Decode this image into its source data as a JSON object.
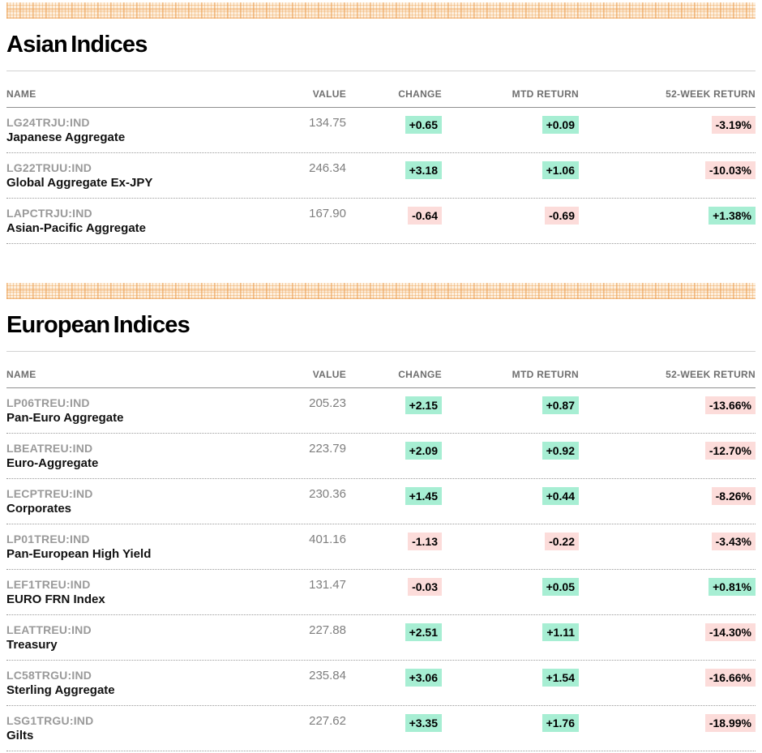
{
  "theme": {
    "positive_bg": "#a7eed3",
    "negative_bg": "#fcdcda",
    "banner_base": "#fdf0e0",
    "banner_line": "#eea458"
  },
  "sections": [
    {
      "title": "Asian Indices",
      "columns": [
        "NAME",
        "VALUE",
        "CHANGE",
        "MTD RETURN",
        "52-WEEK RETURN"
      ],
      "rows": [
        {
          "ticker": "LG24TRJU:IND",
          "name": "Japanese Aggregate",
          "value": "134.75",
          "change": "+0.65",
          "change_dir": "pos",
          "mtd_return": "+0.09",
          "mtd_dir": "pos",
          "week52_return": "-3.19%",
          "week52_dir": "neg"
        },
        {
          "ticker": "LG22TRUU:IND",
          "name": "Global Aggregate Ex-JPY",
          "value": "246.34",
          "change": "+3.18",
          "change_dir": "pos",
          "mtd_return": "+1.06",
          "mtd_dir": "pos",
          "week52_return": "-10.03%",
          "week52_dir": "neg"
        },
        {
          "ticker": "LAPCTRJU:IND",
          "name": "Asian-Pacific Aggregate",
          "value": "167.90",
          "change": "-0.64",
          "change_dir": "neg",
          "mtd_return": "-0.69",
          "mtd_dir": "neg",
          "week52_return": "+1.38%",
          "week52_dir": "pos"
        }
      ]
    },
    {
      "title": "European Indices",
      "columns": [
        "NAME",
        "VALUE",
        "CHANGE",
        "MTD RETURN",
        "52-WEEK RETURN"
      ],
      "rows": [
        {
          "ticker": "LP06TREU:IND",
          "name": "Pan-Euro Aggregate",
          "value": "205.23",
          "change": "+2.15",
          "change_dir": "pos",
          "mtd_return": "+0.87",
          "mtd_dir": "pos",
          "week52_return": "-13.66%",
          "week52_dir": "neg"
        },
        {
          "ticker": "LBEATREU:IND",
          "name": "Euro-Aggregate",
          "value": "223.79",
          "change": "+2.09",
          "change_dir": "pos",
          "mtd_return": "+0.92",
          "mtd_dir": "pos",
          "week52_return": "-12.70%",
          "week52_dir": "neg"
        },
        {
          "ticker": "LECPTREU:IND",
          "name": "Corporates",
          "value": "230.36",
          "change": "+1.45",
          "change_dir": "pos",
          "mtd_return": "+0.44",
          "mtd_dir": "pos",
          "week52_return": "-8.26%",
          "week52_dir": "neg"
        },
        {
          "ticker": "LP01TREU:IND",
          "name": "Pan-European High Yield",
          "value": "401.16",
          "change": "-1.13",
          "change_dir": "neg",
          "mtd_return": "-0.22",
          "mtd_dir": "neg",
          "week52_return": "-3.43%",
          "week52_dir": "neg"
        },
        {
          "ticker": "LEF1TREU:IND",
          "name": "EURO FRN Index",
          "value": "131.47",
          "change": "-0.03",
          "change_dir": "neg",
          "mtd_return": "+0.05",
          "mtd_dir": "pos",
          "week52_return": "+0.81%",
          "week52_dir": "pos"
        },
        {
          "ticker": "LEATTREU:IND",
          "name": "Treasury",
          "value": "227.88",
          "change": "+2.51",
          "change_dir": "pos",
          "mtd_return": "+1.11",
          "mtd_dir": "pos",
          "week52_return": "-14.30%",
          "week52_dir": "neg"
        },
        {
          "ticker": "LC58TRGU:IND",
          "name": "Sterling Aggregate",
          "value": "235.84",
          "change": "+3.06",
          "change_dir": "pos",
          "mtd_return": "+1.54",
          "mtd_dir": "pos",
          "week52_return": "-16.66%",
          "week52_dir": "neg"
        },
        {
          "ticker": "LSG1TRGU:IND",
          "name": "Gilts",
          "value": "227.62",
          "change": "+3.35",
          "change_dir": "pos",
          "mtd_return": "+1.76",
          "mtd_dir": "pos",
          "week52_return": "-18.99%",
          "week52_dir": "neg"
        }
      ]
    }
  ]
}
